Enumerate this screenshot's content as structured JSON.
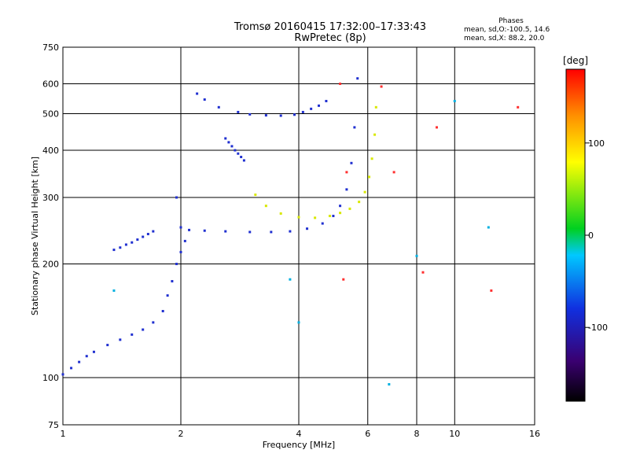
{
  "header": {
    "title_line1": "Tromsø 20160415 17:32:00–17:33:43",
    "title_line2": "RwPretec (8p)"
  },
  "phases_box": {
    "heading": "Phases",
    "line1": "mean, sd,O:-100.5, 14.6",
    "line2": "mean, sd,X:  88.2, 20.0"
  },
  "colorbar": {
    "unit": "deg",
    "ticks": [
      "100",
      "0",
      "-100"
    ],
    "tick_values": [
      100,
      0,
      -100
    ],
    "range": [
      -180,
      180
    ],
    "colors": [
      "#000000",
      "#3a0070",
      "#1030e0",
      "#00c8ff",
      "#00d020",
      "#ffff00",
      "#ff9000",
      "#ff0000"
    ]
  },
  "chart_data": {
    "type": "scatter",
    "xlabel": "Frequency [MHz]",
    "ylabel": "Stationary phase Virtual Height [km]",
    "xscale": "log",
    "yscale": "log",
    "xlim": [
      1,
      16
    ],
    "ylim": [
      75,
      750
    ],
    "x_ticks": [
      1,
      2,
      4,
      6,
      8,
      10,
      16
    ],
    "x_tick_labels": [
      "1",
      "2",
      "4",
      "6",
      "8",
      "10",
      "16"
    ],
    "y_ticks": [
      75,
      100,
      200,
      300,
      400,
      500,
      600,
      750
    ],
    "y_tick_labels": [
      "75",
      "100",
      "200",
      "300",
      "400",
      "500",
      "600",
      "750"
    ],
    "grid": true,
    "series": [
      {
        "color": "#2030d0",
        "trace": "E and low-frequency O-mode echoes",
        "x": [
          1.0,
          1.05,
          1.1,
          1.15,
          1.2,
          1.3,
          1.4,
          1.5,
          1.6,
          1.7,
          1.8,
          1.85,
          1.9,
          1.95,
          2.0,
          2.05
        ],
        "y": [
          102,
          106,
          110,
          114,
          117,
          122,
          126,
          130,
          134,
          140,
          150,
          165,
          180,
          200,
          215,
          230
        ]
      },
      {
        "color": "#2030d0",
        "trace": "sporadic layer near 220 km",
        "x": [
          1.35,
          1.4,
          1.45,
          1.5,
          1.55,
          1.6,
          1.65,
          1.7
        ],
        "y": [
          218,
          221,
          225,
          228,
          232,
          236,
          240,
          244
        ]
      },
      {
        "color": "#2030d0",
        "trace": "F O-mode trace",
        "x": [
          1.95,
          2.0,
          2.1,
          2.3,
          2.6,
          3.0,
          3.4,
          3.8,
          4.2,
          4.6,
          4.9,
          5.1,
          5.3,
          5.45,
          5.55,
          5.65
        ],
        "y": [
          300,
          250,
          246,
          245,
          244,
          243,
          243,
          244,
          248,
          256,
          268,
          285,
          315,
          370,
          460,
          620
        ]
      },
      {
        "color": "#2030d0",
        "trace": "multi-hop trace near 500 km",
        "x": [
          2.2,
          2.3,
          2.5,
          2.8,
          3.0,
          3.3,
          3.6,
          3.9,
          4.1,
          4.3,
          4.5,
          4.7
        ],
        "y": [
          565,
          545,
          520,
          505,
          498,
          495,
          494,
          497,
          505,
          515,
          525,
          540
        ]
      },
      {
        "color": "#2030d0",
        "trace": "echoes near 400 km",
        "x": [
          2.6,
          2.65,
          2.7,
          2.75,
          2.8,
          2.85,
          2.9
        ],
        "y": [
          430,
          420,
          410,
          400,
          392,
          384,
          376
        ]
      },
      {
        "color": "#d8e800",
        "trace": "F X-mode trace",
        "x": [
          3.1,
          3.3,
          3.6,
          4.0,
          4.4,
          4.8,
          5.1,
          5.4,
          5.7,
          5.9,
          6.05,
          6.15,
          6.25,
          6.3
        ],
        "y": [
          305,
          285,
          272,
          266,
          265,
          268,
          273,
          280,
          292,
          310,
          340,
          380,
          440,
          520
        ]
      },
      {
        "color": "#ff3030",
        "trace": "scattered echoes",
        "x": [
          5.1,
          5.2,
          5.3,
          6.5,
          7.0,
          8.3,
          9.0,
          12.4,
          14.5
        ],
        "y": [
          600,
          182,
          350,
          590,
          350,
          190,
          460,
          170,
          520
        ]
      },
      {
        "color": "#00b0e0",
        "trace": "scattered echoes",
        "x": [
          1.35,
          3.8,
          4.0,
          6.8,
          8.0,
          10.0,
          12.2
        ],
        "y": [
          170,
          182,
          140,
          96,
          210,
          540,
          250
        ]
      }
    ]
  }
}
